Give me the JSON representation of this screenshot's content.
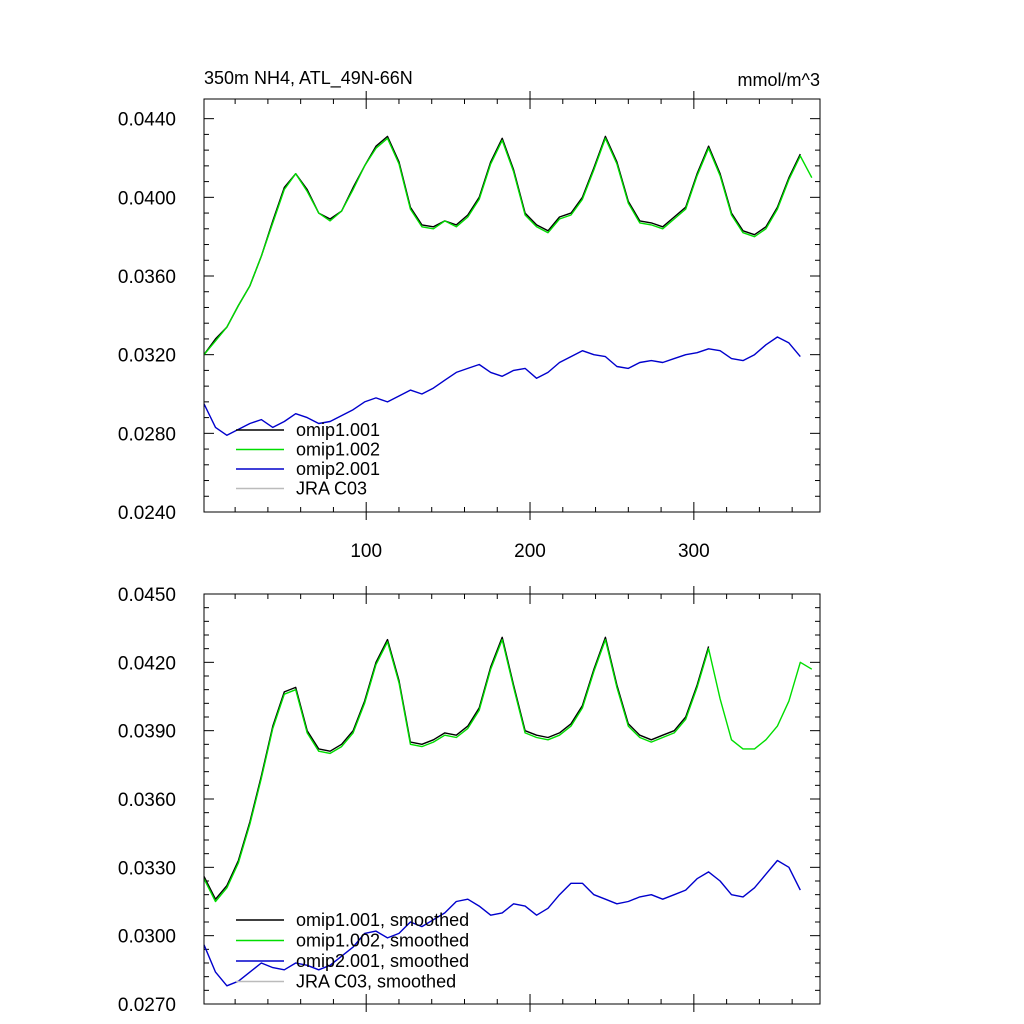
{
  "chart_data": [
    {
      "type": "line",
      "title": "350m NH4, ATL_49N-66N",
      "units": "mmol/m^3",
      "xlim": [
        1,
        377
      ],
      "ylim": [
        0.024,
        0.045
      ],
      "xticks": [
        100,
        200,
        300
      ],
      "yticks": [
        0.024,
        0.028,
        0.032,
        0.036,
        0.04,
        0.044
      ],
      "ytick_labels": [
        "0.0240",
        "0.0280",
        "0.0320",
        "0.0360",
        "0.0400",
        "0.0440"
      ],
      "legend": [
        "omip1.001",
        "omip1.002",
        "omip2.001",
        "JRA C03"
      ],
      "legend_position": "bottom-left",
      "colors": [
        "#000000",
        "#00dd00",
        "#0000cc",
        "#bbbbbb"
      ],
      "series": [
        {
          "name": "omip1.001",
          "x": [
            1,
            8,
            15,
            22,
            29,
            36,
            43,
            50,
            57,
            64,
            71,
            78,
            85,
            92,
            99,
            106,
            113,
            120,
            127,
            134,
            141,
            148,
            155,
            162,
            169,
            176,
            183,
            190,
            197,
            204,
            211,
            218,
            225,
            232,
            239,
            246,
            253,
            260,
            267,
            274,
            281,
            288,
            295,
            302,
            309,
            316,
            323,
            330,
            337,
            344,
            351,
            358,
            365
          ],
          "values": [
            0.032,
            0.0328,
            0.0334,
            0.0345,
            0.0355,
            0.037,
            0.0388,
            0.0405,
            0.0412,
            0.0404,
            0.0392,
            0.0389,
            0.0393,
            0.0405,
            0.0416,
            0.0426,
            0.0431,
            0.0418,
            0.0395,
            0.0386,
            0.0385,
            0.0388,
            0.0386,
            0.0391,
            0.04,
            0.0418,
            0.043,
            0.0414,
            0.0392,
            0.0386,
            0.0383,
            0.039,
            0.0392,
            0.04,
            0.0415,
            0.0431,
            0.0418,
            0.0398,
            0.0388,
            0.0387,
            0.0385,
            0.039,
            0.0395,
            0.0412,
            0.0426,
            0.0412,
            0.0392,
            0.0383,
            0.0381,
            0.0385,
            0.0395,
            0.041,
            0.0422
          ]
        },
        {
          "name": "omip1.002",
          "x": [
            1,
            8,
            15,
            22,
            29,
            36,
            43,
            50,
            57,
            64,
            71,
            78,
            85,
            92,
            99,
            106,
            113,
            120,
            127,
            134,
            141,
            148,
            155,
            162,
            169,
            176,
            183,
            190,
            197,
            204,
            211,
            218,
            225,
            232,
            239,
            246,
            253,
            260,
            267,
            274,
            281,
            288,
            295,
            302,
            309,
            316,
            323,
            330,
            337,
            344,
            351,
            358,
            365,
            372
          ],
          "values": [
            0.032,
            0.0327,
            0.0334,
            0.0345,
            0.0355,
            0.037,
            0.0387,
            0.0404,
            0.0412,
            0.0403,
            0.0392,
            0.0388,
            0.0393,
            0.0404,
            0.0416,
            0.0425,
            0.043,
            0.0417,
            0.0394,
            0.0385,
            0.0384,
            0.0388,
            0.0385,
            0.039,
            0.0399,
            0.0417,
            0.0429,
            0.0413,
            0.0391,
            0.0385,
            0.0382,
            0.0389,
            0.0391,
            0.0399,
            0.0414,
            0.043,
            0.0417,
            0.0397,
            0.0387,
            0.0386,
            0.0384,
            0.0389,
            0.0394,
            0.0411,
            0.0425,
            0.0411,
            0.0391,
            0.0382,
            0.038,
            0.0384,
            0.0394,
            0.0409,
            0.0421,
            0.041
          ]
        },
        {
          "name": "omip2.001",
          "x": [
            1,
            8,
            15,
            22,
            29,
            36,
            43,
            50,
            57,
            64,
            71,
            78,
            85,
            92,
            99,
            106,
            113,
            120,
            127,
            134,
            141,
            148,
            155,
            162,
            169,
            176,
            183,
            190,
            197,
            204,
            211,
            218,
            225,
            232,
            239,
            246,
            253,
            260,
            267,
            274,
            281,
            288,
            295,
            302,
            309,
            316,
            323,
            330,
            337,
            344,
            351,
            358,
            365
          ],
          "values": [
            0.0295,
            0.0283,
            0.0279,
            0.0282,
            0.0285,
            0.0287,
            0.0283,
            0.0286,
            0.029,
            0.0288,
            0.0285,
            0.0286,
            0.0289,
            0.0292,
            0.0296,
            0.0298,
            0.0296,
            0.0299,
            0.0302,
            0.03,
            0.0303,
            0.0307,
            0.0311,
            0.0313,
            0.0315,
            0.0311,
            0.0309,
            0.0312,
            0.0313,
            0.0308,
            0.0311,
            0.0316,
            0.0319,
            0.0322,
            0.032,
            0.0319,
            0.0314,
            0.0313,
            0.0316,
            0.0317,
            0.0316,
            0.0318,
            0.032,
            0.0321,
            0.0323,
            0.0322,
            0.0318,
            0.0317,
            0.032,
            0.0325,
            0.0329,
            0.0326,
            0.0319
          ]
        },
        {
          "name": "JRA C03",
          "x": [],
          "values": []
        }
      ]
    },
    {
      "type": "line",
      "xlim": [
        1,
        377
      ],
      "ylim": [
        0.027,
        0.045
      ],
      "xticks": [
        100,
        200,
        300
      ],
      "yticks": [
        0.027,
        0.03,
        0.033,
        0.036,
        0.039,
        0.042,
        0.045
      ],
      "ytick_labels": [
        "0.0270",
        "0.0300",
        "0.0330",
        "0.0360",
        "0.0390",
        "0.0420",
        "0.0450"
      ],
      "legend": [
        "omip1.001, smoothed",
        "omip1.002, smoothed",
        "omip2.001, smoothed",
        "JRA C03, smoothed"
      ],
      "legend_position": "bottom-left",
      "colors": [
        "#000000",
        "#00dd00",
        "#0000cc",
        "#bbbbbb"
      ],
      "series": [
        {
          "name": "omip1.001, smoothed",
          "x": [
            1,
            8,
            15,
            22,
            29,
            36,
            43,
            50,
            57,
            64,
            71,
            78,
            85,
            92,
            99,
            106,
            113,
            120,
            127,
            134,
            141,
            148,
            155,
            162,
            169,
            176,
            183,
            190,
            197,
            204,
            211,
            218,
            225,
            232,
            239,
            246,
            253,
            260,
            267,
            274,
            281,
            288,
            295,
            302,
            309
          ],
          "values": [
            0.0326,
            0.0316,
            0.0322,
            0.0333,
            0.035,
            0.037,
            0.0392,
            0.0407,
            0.0409,
            0.039,
            0.0382,
            0.0381,
            0.0384,
            0.039,
            0.0403,
            0.042,
            0.043,
            0.0412,
            0.0385,
            0.0384,
            0.0386,
            0.0389,
            0.0388,
            0.0392,
            0.04,
            0.0418,
            0.0431,
            0.041,
            0.039,
            0.0388,
            0.0387,
            0.0389,
            0.0393,
            0.0401,
            0.0417,
            0.0431,
            0.041,
            0.0393,
            0.0388,
            0.0386,
            0.0388,
            0.039,
            0.0396,
            0.041,
            0.0427
          ]
        },
        {
          "name": "omip1.002, smoothed",
          "x": [
            1,
            8,
            15,
            22,
            29,
            36,
            43,
            50,
            57,
            64,
            71,
            78,
            85,
            92,
            99,
            106,
            113,
            120,
            127,
            134,
            141,
            148,
            155,
            162,
            169,
            176,
            183,
            190,
            197,
            204,
            211,
            218,
            225,
            232,
            239,
            246,
            253,
            260,
            267,
            274,
            281,
            288,
            295,
            302,
            309,
            316,
            323,
            330,
            337,
            344,
            351,
            358,
            365,
            372
          ],
          "values": [
            0.0325,
            0.0315,
            0.0321,
            0.0332,
            0.0349,
            0.0369,
            0.0391,
            0.0406,
            0.0408,
            0.0389,
            0.0381,
            0.038,
            0.0383,
            0.0389,
            0.0402,
            0.0419,
            0.0429,
            0.0411,
            0.0384,
            0.0383,
            0.0385,
            0.0388,
            0.0387,
            0.0391,
            0.0399,
            0.0417,
            0.043,
            0.0409,
            0.0389,
            0.0387,
            0.0386,
            0.0388,
            0.0392,
            0.04,
            0.0416,
            0.043,
            0.0409,
            0.0392,
            0.0387,
            0.0385,
            0.0387,
            0.0389,
            0.0395,
            0.0409,
            0.0426,
            0.0404,
            0.0386,
            0.0382,
            0.0382,
            0.0386,
            0.0392,
            0.0403,
            0.042,
            0.0417
          ]
        },
        {
          "name": "omip2.001, smoothed",
          "x": [
            1,
            8,
            15,
            22,
            29,
            36,
            43,
            50,
            57,
            64,
            71,
            78,
            85,
            92,
            99,
            106,
            113,
            120,
            127,
            134,
            141,
            148,
            155,
            162,
            169,
            176,
            183,
            190,
            197,
            204,
            211,
            218,
            225,
            232,
            239,
            246,
            253,
            260,
            267,
            274,
            281,
            288,
            295,
            302,
            309,
            316,
            323,
            330,
            337,
            344,
            351,
            358,
            365
          ],
          "values": [
            0.0296,
            0.0284,
            0.0278,
            0.028,
            0.0284,
            0.0288,
            0.0286,
            0.0285,
            0.0288,
            0.0287,
            0.0285,
            0.0287,
            0.0291,
            0.0295,
            0.0301,
            0.0302,
            0.0299,
            0.0301,
            0.0306,
            0.0304,
            0.0307,
            0.031,
            0.0315,
            0.0316,
            0.0313,
            0.0309,
            0.031,
            0.0314,
            0.0313,
            0.0309,
            0.0312,
            0.0318,
            0.0323,
            0.0323,
            0.0318,
            0.0316,
            0.0314,
            0.0315,
            0.0317,
            0.0318,
            0.0316,
            0.0318,
            0.032,
            0.0325,
            0.0328,
            0.0324,
            0.0318,
            0.0317,
            0.0321,
            0.0327,
            0.0333,
            0.033,
            0.032
          ]
        },
        {
          "name": "JRA C03, smoothed",
          "x": [],
          "values": []
        }
      ]
    }
  ]
}
